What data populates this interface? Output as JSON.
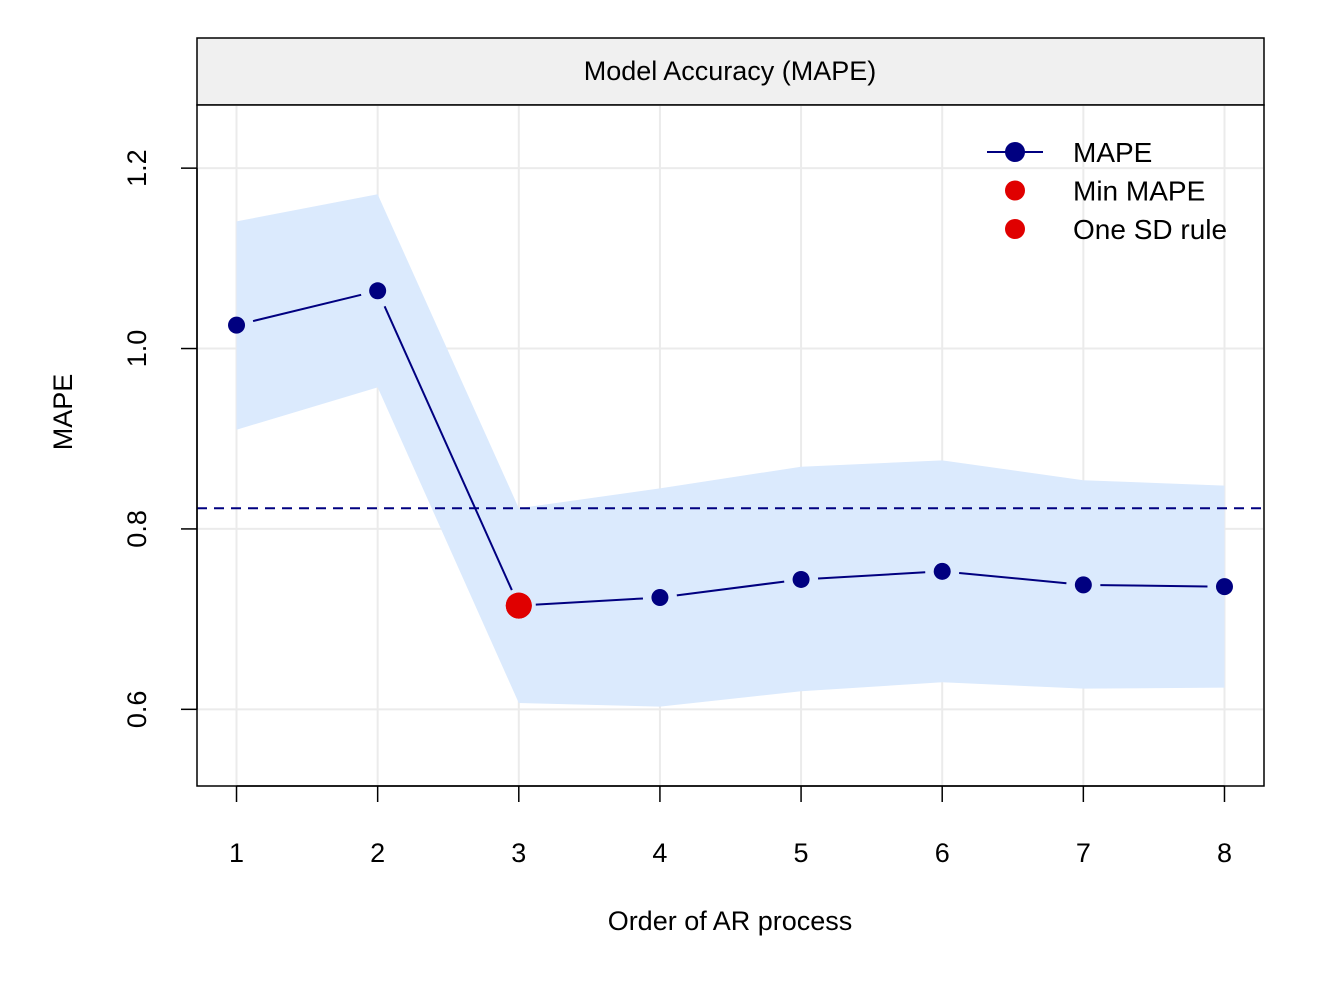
{
  "chart_data": {
    "type": "line",
    "title": "Model Accuracy (MAPE)",
    "xlabel": "Order of AR process",
    "ylabel": "MAPE",
    "xlim": [
      0.72,
      8.28
    ],
    "ylim": [
      0.515,
      1.27
    ],
    "x_ticks": [
      1,
      2,
      3,
      4,
      5,
      6,
      7,
      8
    ],
    "y_ticks": [
      0.6,
      0.8,
      1.0,
      1.2
    ],
    "y_tick_labels": [
      "0.6",
      "0.8",
      "1.0",
      "1.2"
    ],
    "grid": true,
    "legend_position": "top-right",
    "series": [
      {
        "name": "MAPE",
        "color": "#000080",
        "x": [
          1,
          2,
          3,
          4,
          5,
          6,
          7,
          8
        ],
        "y": [
          1.026,
          1.064,
          0.715,
          0.724,
          0.744,
          0.753,
          0.738,
          0.736
        ],
        "lower": [
          0.91,
          0.957,
          0.607,
          0.603,
          0.62,
          0.63,
          0.623,
          0.624
        ],
        "upper": [
          1.141,
          1.171,
          0.823,
          0.845,
          0.869,
          0.876,
          0.854,
          0.848
        ]
      }
    ],
    "band_color": "#dbeafd",
    "reference_line": {
      "y": 0.823,
      "style": "dashed",
      "color": "#000080"
    },
    "highlight_points": [
      {
        "name": "Min MAPE",
        "x": 3,
        "y": 0.715,
        "color": "#e00000"
      },
      {
        "name": "One SD rule",
        "x": 3,
        "y": 0.715,
        "color": "#e00000"
      }
    ],
    "legend": [
      {
        "label": "MAPE",
        "color": "#000080",
        "kind": "line-point"
      },
      {
        "label": "Min MAPE",
        "color": "#e00000",
        "kind": "point"
      },
      {
        "label": "One SD rule",
        "color": "#e00000",
        "kind": "point"
      }
    ]
  }
}
